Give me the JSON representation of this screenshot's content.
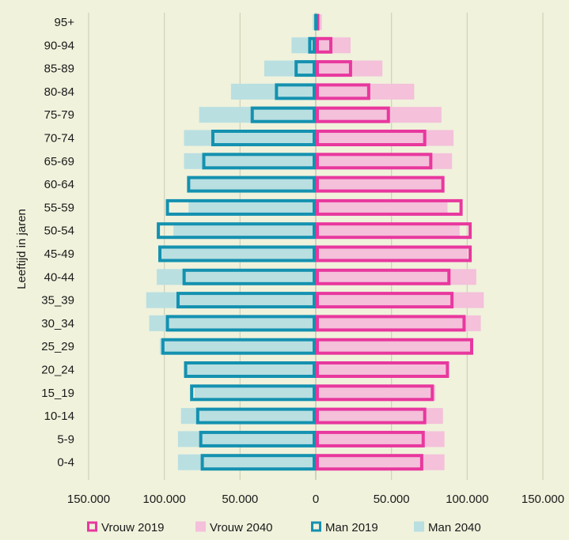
{
  "chart_data": {
    "type": "bar",
    "orientation": "horizontal",
    "subtype": "population-pyramid",
    "ylabel": "Leeftijd in jaren",
    "xlabel": "",
    "xlim": [
      -150000,
      150000
    ],
    "x_ticks": [
      -150000,
      -100000,
      -50000,
      0,
      50000,
      100000,
      150000
    ],
    "x_tick_labels": [
      "150.000",
      "100.000",
      "50.000",
      "0",
      "50.000",
      "100.000",
      "150.000"
    ],
    "grid": "vertical",
    "legend_position": "bottom",
    "categories": [
      "95+",
      "90-94",
      "85-89",
      "80-84",
      "75-79",
      "70-74",
      "65-69",
      "60-64",
      "55-59",
      "50-54",
      "45-49",
      "40-44",
      "35_39",
      "30_34",
      "25_29",
      "20_24",
      "15_19",
      "10-14",
      "5-9",
      "0-4"
    ],
    "series": [
      {
        "name": "Vrouw 2019",
        "side": "right",
        "style": "outline",
        "color": "#e8389e",
        "values": [
          2000,
          11000,
          24000,
          36000,
          49000,
          73000,
          77000,
          85000,
          97000,
          103000,
          103000,
          89000,
          91000,
          99000,
          104000,
          88000,
          78000,
          73000,
          72000,
          71000
        ]
      },
      {
        "name": "Vrouw 2040",
        "side": "right",
        "style": "fill",
        "color": "#f4c0da",
        "values": [
          4000,
          23000,
          44000,
          65000,
          83000,
          91000,
          90000,
          85000,
          87000,
          95000,
          100000,
          106000,
          111000,
          109000,
          104000,
          88000,
          79000,
          84000,
          85000,
          85000
        ]
      },
      {
        "name": "Man 2019",
        "side": "left",
        "style": "outline",
        "color": "#1491b0",
        "values": [
          1000,
          5000,
          14000,
          27000,
          43000,
          69000,
          75000,
          85000,
          99000,
          105000,
          104000,
          88000,
          92000,
          99000,
          102000,
          87000,
          83000,
          79000,
          77000,
          76000
        ]
      },
      {
        "name": "Man 2040",
        "side": "left",
        "style": "fill",
        "color": "#b9dfe1",
        "values": [
          2000,
          16000,
          34000,
          56000,
          77000,
          87000,
          87000,
          83000,
          84000,
          94000,
          102000,
          105000,
          112000,
          110000,
          103000,
          86000,
          80000,
          89000,
          91000,
          91000
        ]
      }
    ]
  }
}
